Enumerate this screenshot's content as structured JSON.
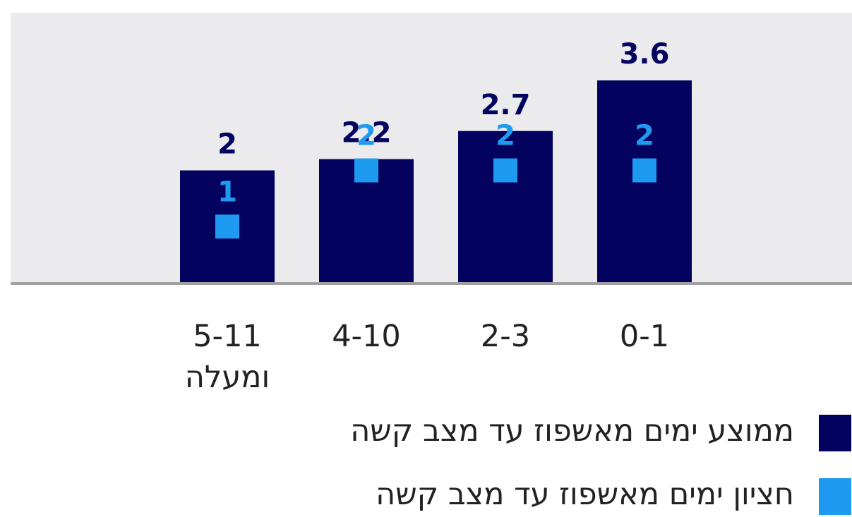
{
  "chart_data": {
    "type": "bar",
    "categories": [
      "0-1",
      "2-3",
      "4-10",
      "5-11 ומעלה"
    ],
    "series": [
      {
        "name": "ממוצע ימים מאשפוז עד מצב קשה",
        "color": "#03035f",
        "values": [
          3.6,
          2.7,
          2.2,
          2
        ]
      },
      {
        "name": "חציון ימים מאשפוז עד מצב קשה",
        "color": "#1e9bf0",
        "values": [
          2,
          2,
          2,
          1
        ],
        "marker": "square"
      }
    ]
  }
}
